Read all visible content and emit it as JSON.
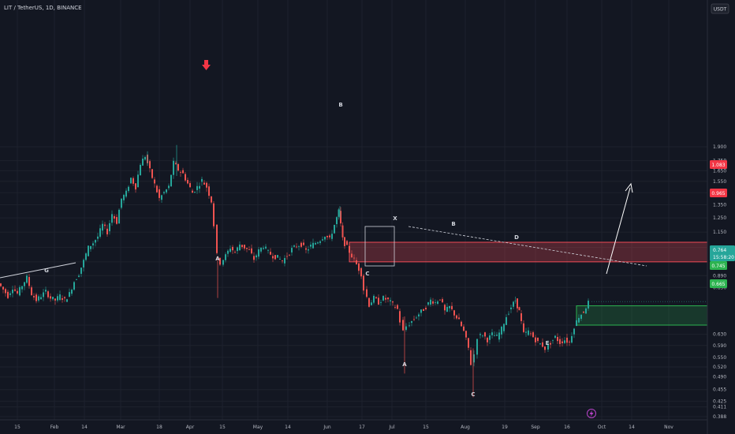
{
  "header": {
    "symbol_line": "LIT / TetherUS, 1D, BINANCE",
    "currency_badge": "USDT"
  },
  "chart_data": {
    "type": "candlestick",
    "ylim": [
      0.38,
      1.99
    ],
    "y_scale": "log",
    "y_ticks": [
      "1.900",
      "1.750",
      "1.650",
      "1.550",
      "1.450",
      "1.350",
      "1.250",
      "1.150",
      "1.050",
      "0.965",
      "0.890",
      "0.830",
      "0.745",
      "0.665",
      "0.630",
      "0.590",
      "0.550",
      "0.520",
      "0.490",
      "0.455",
      "0.425",
      "0.411",
      "0.388"
    ],
    "x_ticks": [
      "15",
      "Feb",
      "14",
      "Mar",
      "18",
      "Apr",
      "15",
      "May",
      "14",
      "Jun",
      "17",
      "Jul",
      "15",
      "Aug",
      "19",
      "Sep",
      "16",
      "Oct",
      "14",
      "Nov",
      "18"
    ],
    "price_labels": {
      "last_price": "0.764",
      "countdown": "15:58:20",
      "support_top": "0.745",
      "support_bottom": "0.665",
      "resistance_top": "1.083",
      "resistance_bottom": "0.965"
    },
    "zones": [
      {
        "name": "resistance-zone",
        "top": 1.083,
        "bottom": 0.965,
        "color": "#ef4b55"
      },
      {
        "name": "support-zone",
        "top": 0.745,
        "bottom": 0.665,
        "color": "#2db350"
      }
    ],
    "wave_labels": [
      "G",
      "A",
      "B",
      "C",
      "X",
      "A",
      "B",
      "C",
      "D",
      "E"
    ],
    "colors": {
      "up": "#26a69a",
      "down": "#ef5350",
      "background": "#131722",
      "grid": "#1e222d"
    },
    "annotations": [
      "down-arrow marker",
      "up-projection arrow",
      "descending dashed trendline",
      "ascending trendline",
      "consolidation box"
    ]
  }
}
